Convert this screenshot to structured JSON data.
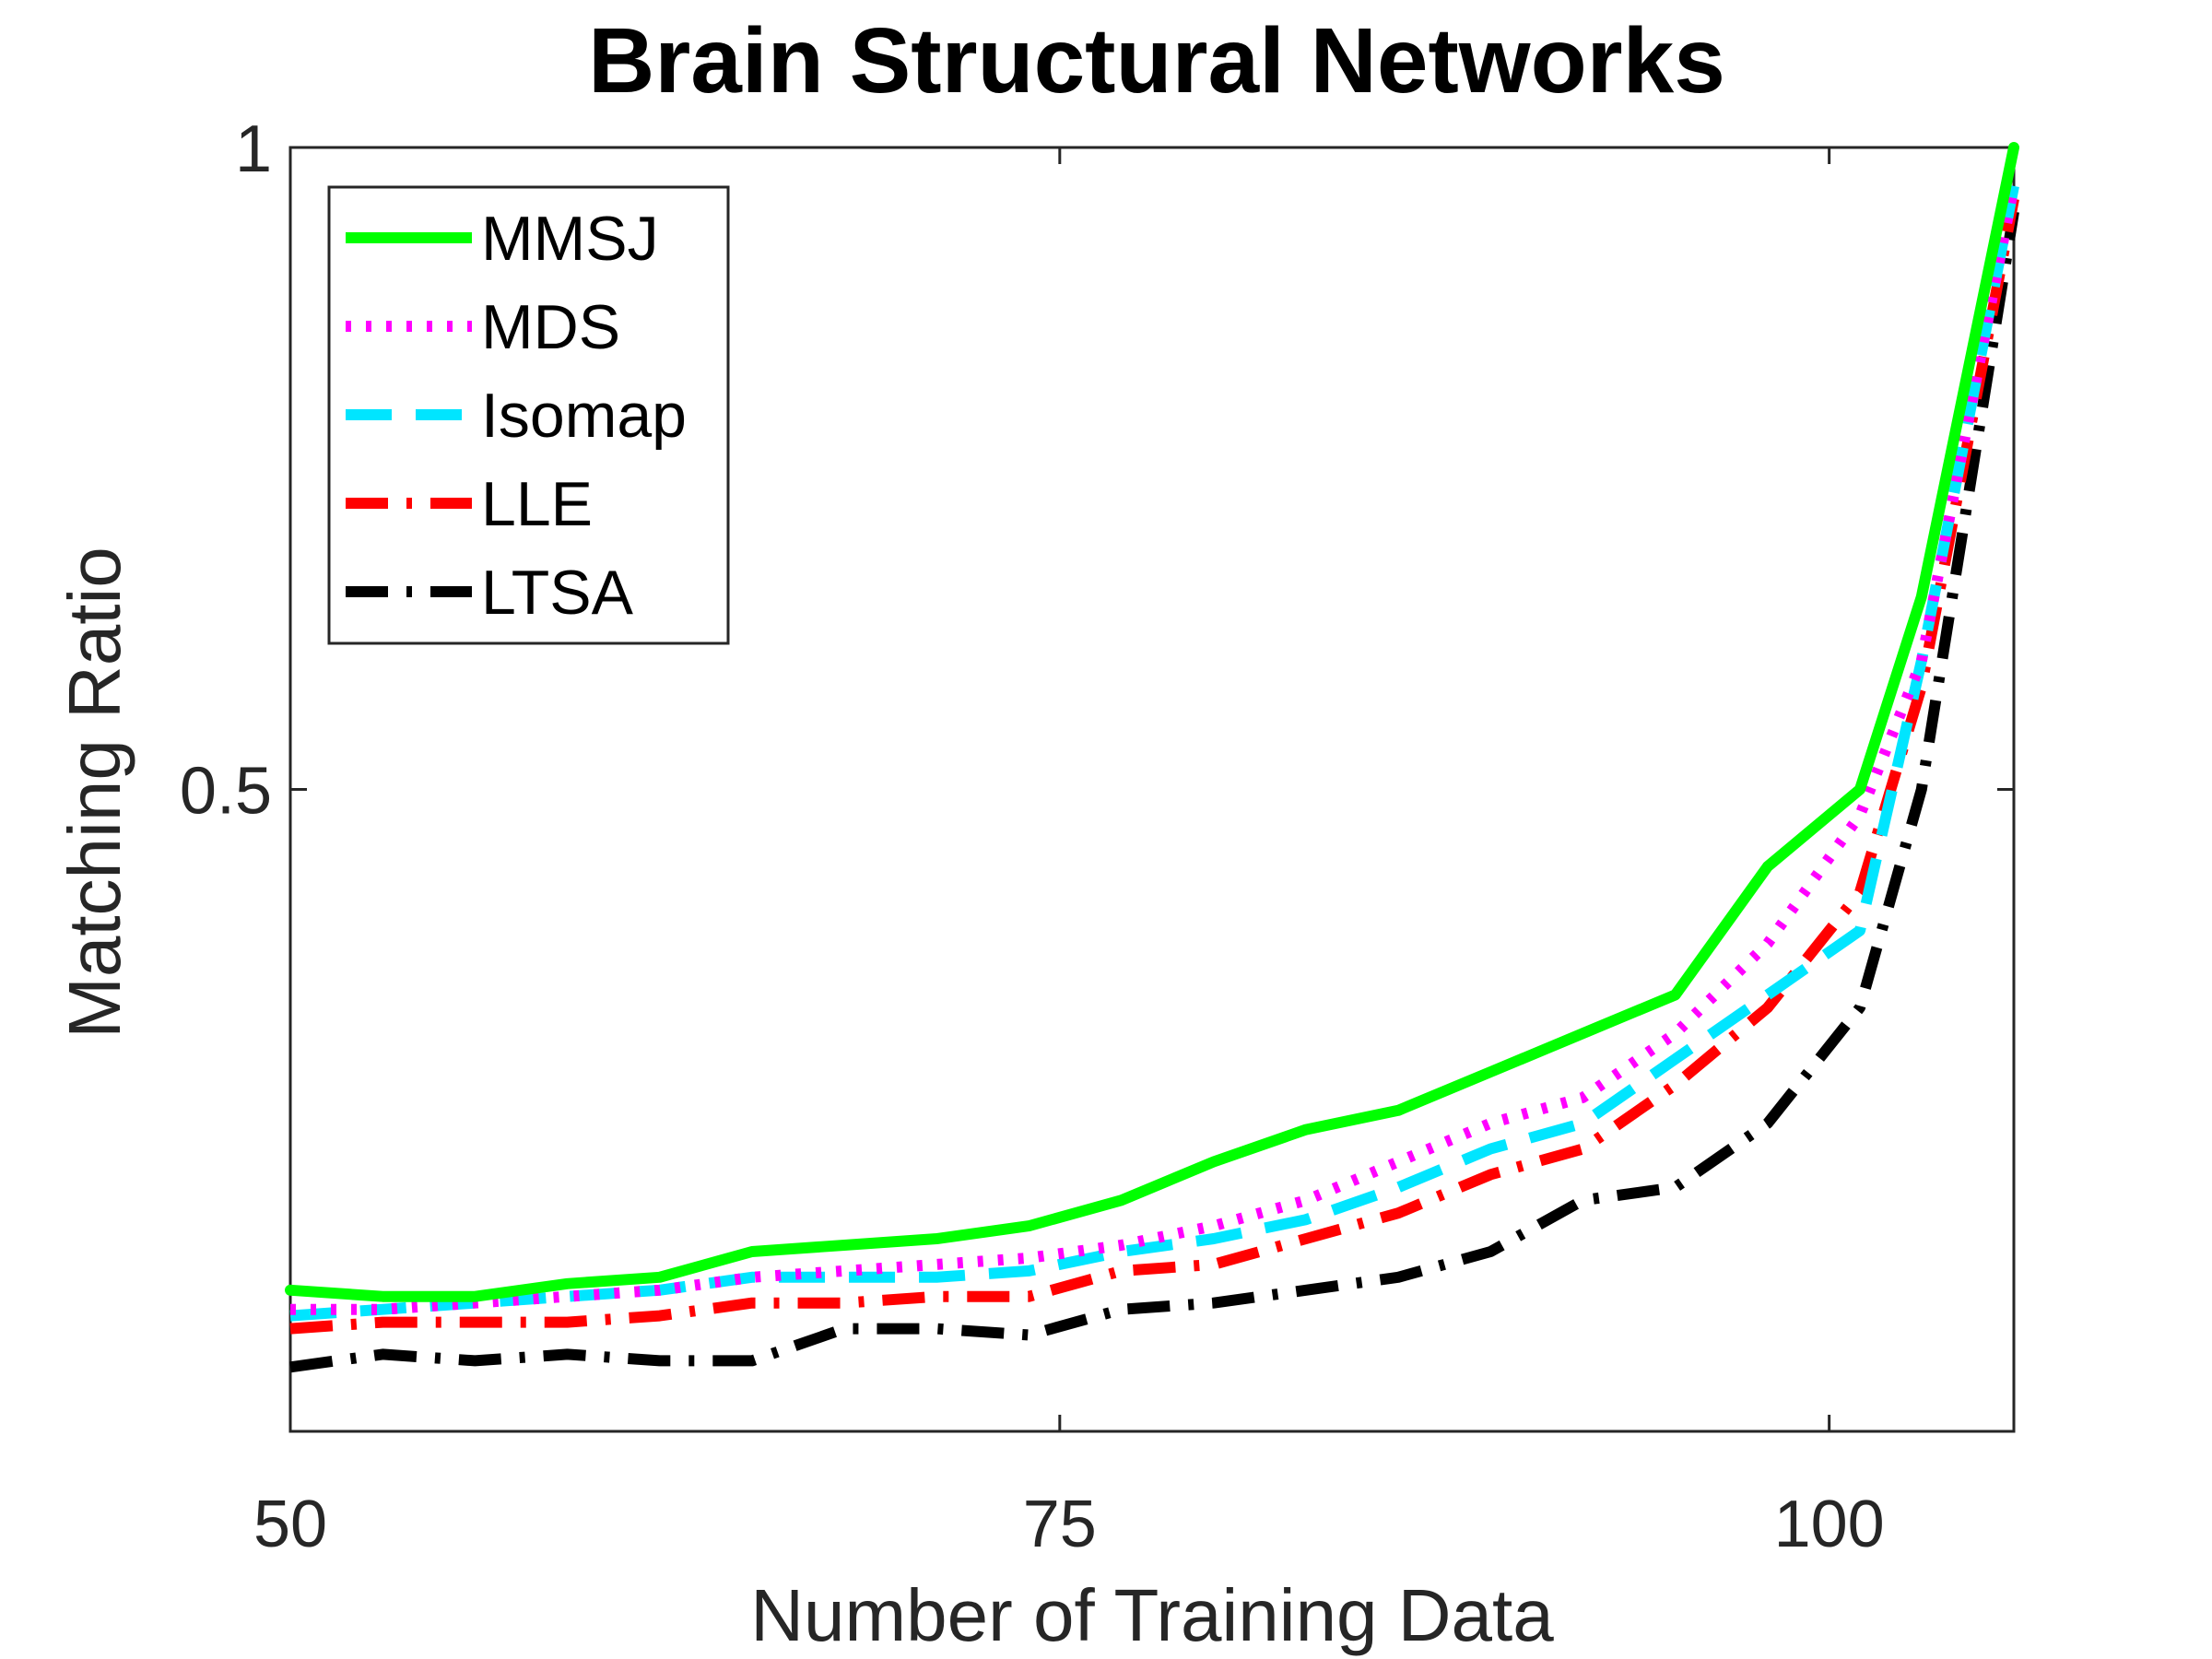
{
  "chart_data": {
    "type": "line",
    "title": "Brain Structural Networks",
    "xlabel": "Number of Training Data",
    "ylabel": "Matching Ratio",
    "xlim": [
      50,
      106
    ],
    "ylim": [
      0,
      1
    ],
    "xticks": [
      50,
      75,
      100
    ],
    "xtick_labels": [
      "50",
      "75",
      "100"
    ],
    "yticks": [
      0.5,
      1
    ],
    "ytick_labels": [
      "0.5",
      "1"
    ],
    "legend_position": "top-left",
    "grid": false,
    "x": [
      50,
      53,
      56,
      59,
      62,
      65,
      68,
      71,
      74,
      77,
      80,
      83,
      86,
      89,
      92,
      95,
      98,
      101,
      103,
      106
    ],
    "series": [
      {
        "name": "MMSJ",
        "color": "#00ff00",
        "style": "solid",
        "values": [
          0.11,
          0.105,
          0.105,
          0.115,
          0.12,
          0.14,
          0.145,
          0.15,
          0.16,
          0.18,
          0.21,
          0.235,
          0.25,
          0.28,
          0.31,
          0.34,
          0.44,
          0.5,
          0.65,
          1.0
        ]
      },
      {
        "name": "MDS",
        "color": "#ff00ff",
        "style": "dotted",
        "values": [
          0.095,
          0.095,
          0.1,
          0.105,
          0.11,
          0.12,
          0.125,
          0.13,
          0.135,
          0.145,
          0.16,
          0.18,
          0.21,
          0.24,
          0.26,
          0.31,
          0.38,
          0.48,
          0.6,
          0.97
        ]
      },
      {
        "name": "Isomap",
        "color": "#00e5ff",
        "style": "dashed",
        "values": [
          0.09,
          0.095,
          0.1,
          0.105,
          0.11,
          0.12,
          0.12,
          0.12,
          0.125,
          0.14,
          0.15,
          0.165,
          0.19,
          0.22,
          0.24,
          0.29,
          0.34,
          0.39,
          0.6,
          0.97
        ]
      },
      {
        "name": "LLE",
        "color": "#ff0000",
        "style": "dash-dot",
        "values": [
          0.08,
          0.085,
          0.085,
          0.085,
          0.09,
          0.1,
          0.1,
          0.105,
          0.105,
          0.125,
          0.13,
          0.15,
          0.17,
          0.2,
          0.22,
          0.27,
          0.33,
          0.42,
          0.58,
          0.96
        ]
      },
      {
        "name": "LTSA",
        "color": "#000000",
        "style": "dash-dot",
        "values": [
          0.05,
          0.06,
          0.055,
          0.06,
          0.055,
          0.055,
          0.08,
          0.08,
          0.075,
          0.095,
          0.1,
          0.11,
          0.12,
          0.14,
          0.18,
          0.19,
          0.24,
          0.33,
          0.5,
          0.95
        ]
      }
    ]
  }
}
